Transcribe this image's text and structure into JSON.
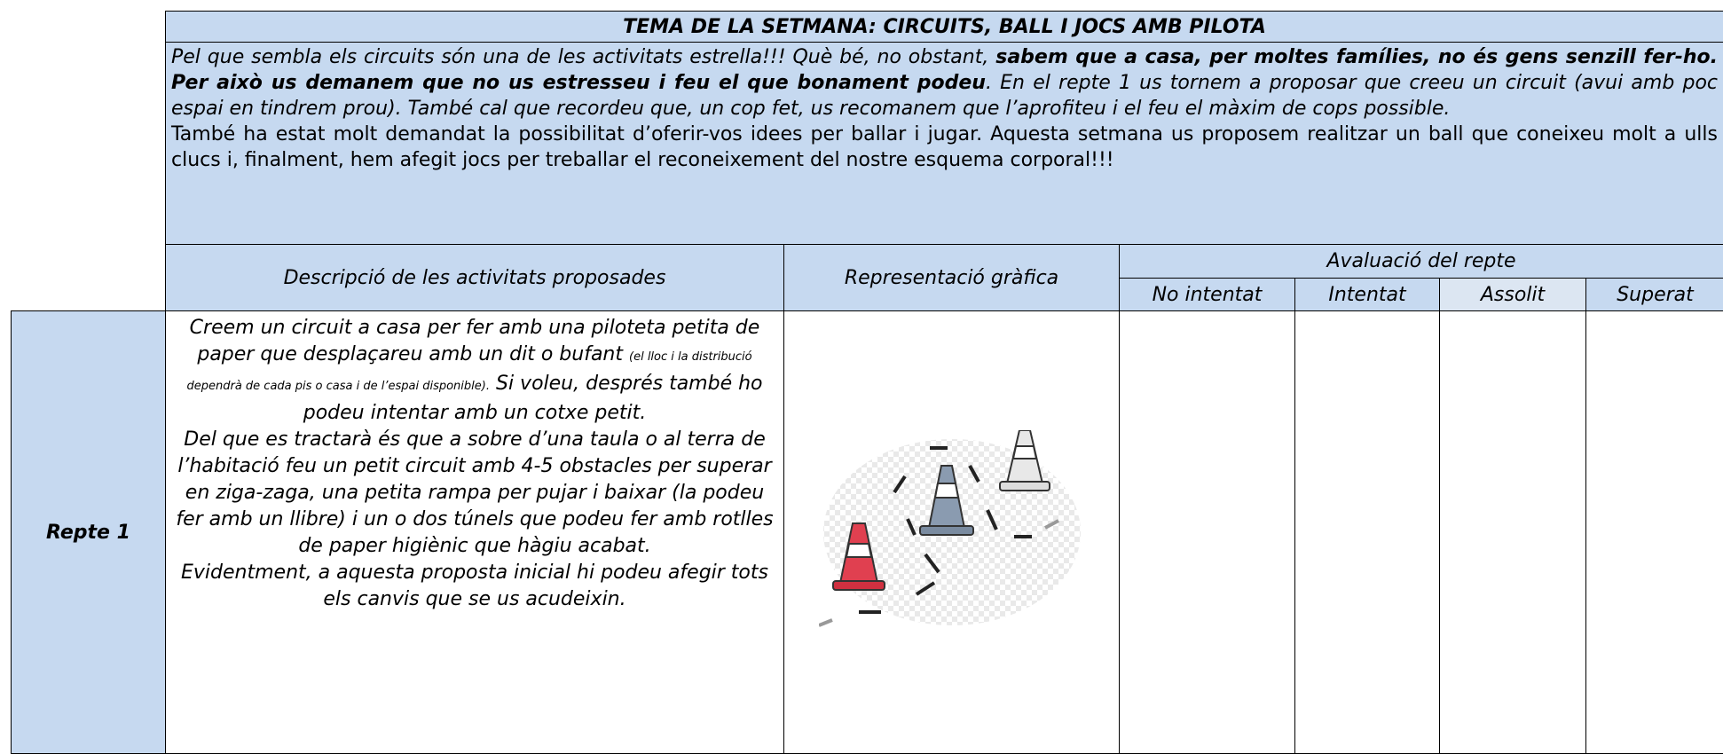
{
  "header": {
    "title": "TEMA DE LA SETMANA: CIRCUITS, BALL I JOCS AMB PILOTA"
  },
  "intro": {
    "paragraph_1": [
      {
        "text": "Pel que sembla els circuits són una de les activitats estrella!!! Què bé, no obstant, ",
        "style": "italic"
      },
      {
        "text": "sabem que a casa, per moltes famílies, no és gens senzill fer-ho. Per això us demanem que no us estresseu i feu el que bonament podeu",
        "style": "bold-italic"
      },
      {
        "text": ". En el repte 1 us tornem a proposar que creeu un circuit (avui amb poc espai en tindrem prou). També cal que recordeu que, un cop fet, us recomanem que l’aprofiteu i el feu el màxim de cops possible.",
        "style": "italic"
      }
    ],
    "paragraph_2": "També ha estat molt demandat la possibilitat d’oferir-vos idees per ballar i jugar. Aquesta setmana us proposem realitzar un ball que coneixeu molt a ulls clucs i, finalment, hem afegit jocs per treballar el reconeixement del nostre esquema corporal!!!"
  },
  "table": {
    "columns": {
      "description": "Descripció de les activitats proposades",
      "graphic": "Representació gràfica",
      "evaluation": "Avaluació del repte",
      "levels": [
        "No intentat",
        "Intentat",
        "Assolit",
        "Superat"
      ]
    },
    "rows": [
      {
        "label": "Repte 1",
        "description": [
          {
            "text": "Creem un circuit a casa per fer amb una piloteta petita de paper que desplaçareu amb un dit o bufant ",
            "style": "normal"
          },
          {
            "text": "(el lloc i la distribució dependrà de cada pis o casa i de l’espai disponible).",
            "style": "small"
          },
          {
            "text": " Si voleu, després també ho podeu intentar amb un cotxe petit.",
            "style": "normal"
          },
          {
            "text": "Del que es tractarà és que a sobre d’una taula o al terra de l’habitació feu un petit circuit amb 4-5 obstacles per superar en ziga-zaga, una petita rampa per pujar i baixar (la podeu fer amb un llibre) i un o dos túnels que podeu fer amb rotlles de paper higiènic que hàgiu acabat.",
            "style": "break"
          },
          {
            "text": "Evidentment, a aquesta proposta inicial hi podeu afegir tots els canvis que se us acudeixin.",
            "style": "break"
          }
        ]
      }
    ]
  }
}
